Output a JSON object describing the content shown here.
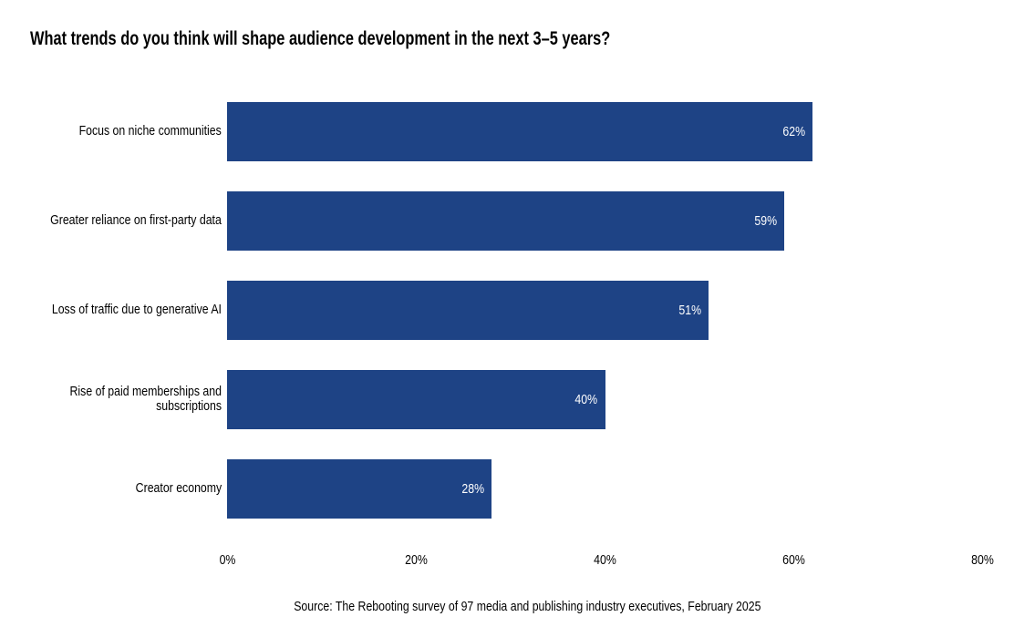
{
  "chart_data": {
    "type": "bar",
    "orientation": "horizontal",
    "title": "What trends do you think will shape audience development in the next 3–5 years?",
    "categories": [
      "Focus on niche communities",
      "Greater reliance on first-party data",
      "Loss of traffic due to generative AI",
      "Rise of paid memberships and subscriptions",
      "Creator economy"
    ],
    "values": [
      62,
      59,
      51,
      40,
      28
    ],
    "value_suffix": "%",
    "xlabel": "",
    "ylabel": "",
    "xlim": [
      0,
      80
    ],
    "x_ticks": [
      {
        "value": 0,
        "label": "0%"
      },
      {
        "value": 20,
        "label": "20%"
      },
      {
        "value": 40,
        "label": "40%"
      },
      {
        "value": 60,
        "label": "60%"
      },
      {
        "value": 80,
        "label": "80%"
      }
    ],
    "grid": false,
    "legend": false,
    "bar_color": "#1E4385",
    "value_label_color": "#FFFFFF",
    "text_color": "#000000",
    "source": "Source: The Rebooting survey of 97 media and publishing industry executives, February 2025"
  }
}
